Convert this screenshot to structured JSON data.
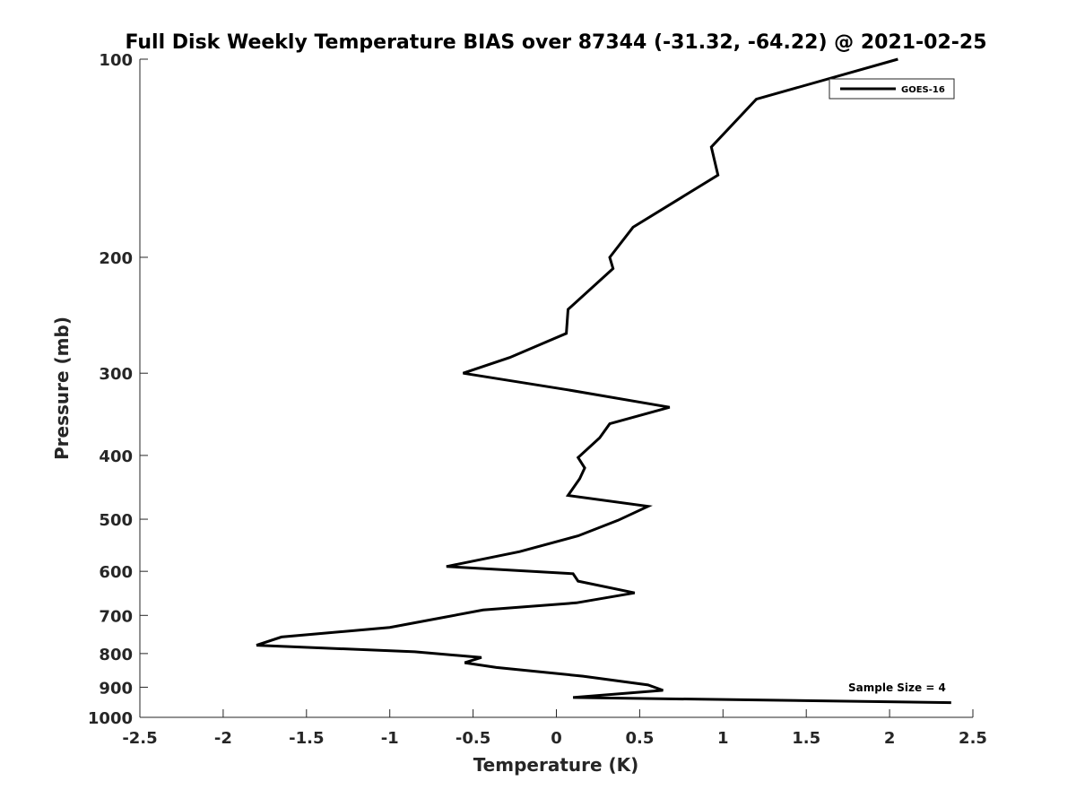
{
  "chart_data": {
    "type": "line",
    "title": "Full Disk Weekly Temperature BIAS over 87344 (-31.32, -64.22) @ 2021-02-25",
    "xlabel": "Temperature (K)",
    "ylabel": "Pressure (mb)",
    "xlim": [
      -2.5,
      2.5
    ],
    "ylim": [
      100,
      1000
    ],
    "y_scale": "log",
    "y_reversed": true,
    "x_ticks": [
      -2.5,
      -2,
      -1.5,
      -1,
      -0.5,
      0,
      0.5,
      1,
      1.5,
      2,
      2.5
    ],
    "x_tick_labels": [
      "-2.5",
      "-2",
      "-1.5",
      "-1",
      "-0.5",
      "0",
      "0.5",
      "1",
      "1.5",
      "2",
      "2.5"
    ],
    "y_ticks": [
      100,
      200,
      300,
      400,
      500,
      600,
      700,
      800,
      900,
      1000
    ],
    "y_tick_labels": [
      "100",
      "200",
      "300",
      "400",
      "500",
      "600",
      "700",
      "800",
      "900",
      "1000"
    ],
    "grid": false,
    "legend_position": "top-right",
    "annotation": "Sample Size = 4",
    "color": "#000000",
    "series": [
      {
        "name": "GOES-16",
        "x": [
          2.05,
          1.2,
          0.93,
          0.97,
          0.46,
          0.32,
          0.34,
          0.07,
          0.06,
          -0.28,
          -0.56,
          0.07,
          0.68,
          0.32,
          0.26,
          0.13,
          0.17,
          0.14,
          0.07,
          0.55,
          0.37,
          0.13,
          -0.22,
          -0.66,
          0.1,
          0.13,
          0.47,
          0.12,
          -0.44,
          -0.68,
          -1.0,
          -1.65,
          -1.8,
          -0.85,
          -0.45,
          -0.55,
          -0.36,
          0.16,
          0.55,
          0.64,
          0.1,
          2.37
        ],
        "y": [
          100,
          115,
          136,
          150,
          180,
          200,
          208,
          240,
          261,
          284,
          300,
          318,
          338,
          358,
          376,
          403,
          418,
          434,
          460,
          478,
          502,
          530,
          560,
          590,
          605,
          621,
          647,
          670,
          687,
          705,
          730,
          755,
          777,
          795,
          811,
          826,
          840,
          866,
          893,
          910,
          933,
          950
        ]
      }
    ]
  }
}
